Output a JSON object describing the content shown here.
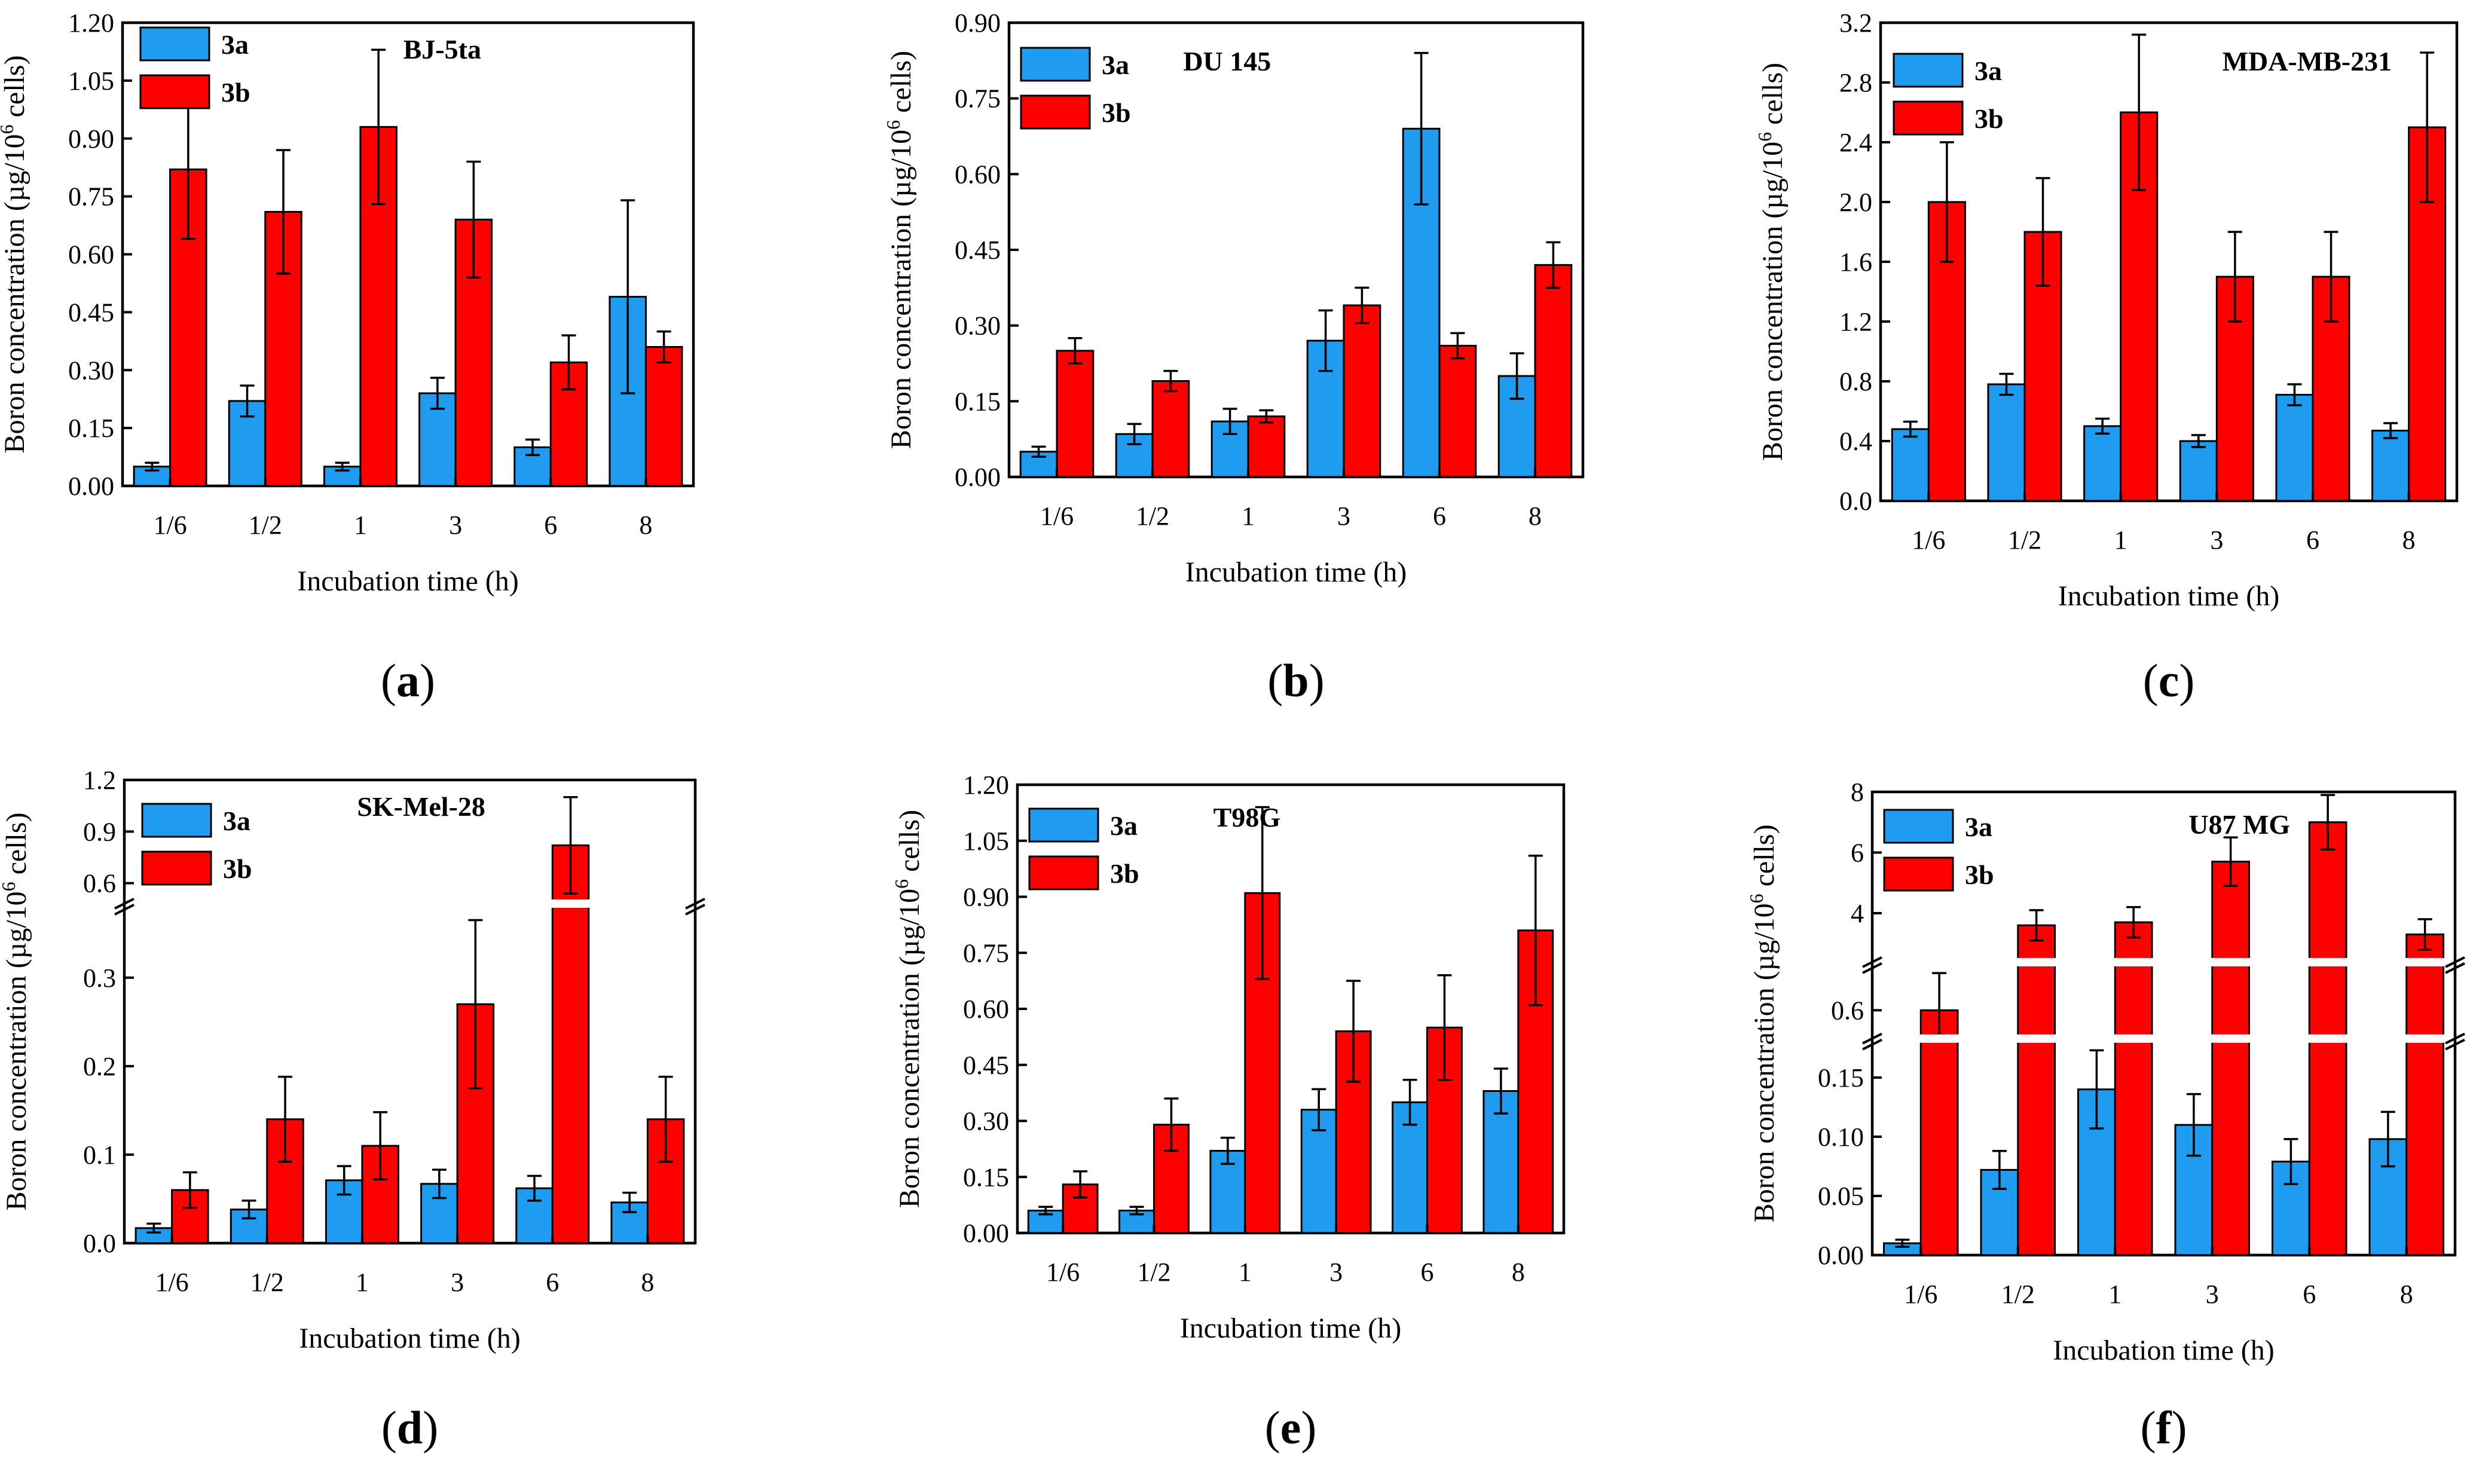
{
  "figure": {
    "legend_names": [
      "3a",
      "3b"
    ],
    "colors": {
      "3a": "#1f9bef",
      "3b": "#ff0000"
    },
    "ylabel_prefix": "Boron concentration (µg/10",
    "ylabel_sup": "6",
    "ylabel_suffix": " cells)"
  },
  "chart_data": [
    {
      "type": "bar",
      "id": "a",
      "panel": "a",
      "title": "BJ-5ta",
      "xlabel": "Incubation time (h)",
      "categories": [
        "1/6",
        "1/2",
        "1",
        "3",
        "6",
        "8"
      ],
      "ylim": [
        0,
        1.2
      ],
      "yticks": [
        0.0,
        0.15,
        0.3,
        0.45,
        0.6,
        0.75,
        0.9,
        1.05,
        1.2
      ],
      "ytick_labels": [
        "0.00",
        "0.15",
        "0.30",
        "0.45",
        "0.60",
        "0.75",
        "0.90",
        "1.05",
        "1.20"
      ],
      "series": [
        {
          "name": "3a",
          "values": [
            0.05,
            0.22,
            0.05,
            0.24,
            0.1,
            0.49
          ],
          "errors": [
            0.01,
            0.04,
            0.01,
            0.04,
            0.02,
            0.25
          ]
        },
        {
          "name": "3b",
          "values": [
            0.82,
            0.71,
            0.93,
            0.69,
            0.32,
            0.36
          ],
          "errors": [
            0.18,
            0.16,
            0.2,
            0.15,
            0.07,
            0.04
          ]
        }
      ]
    },
    {
      "type": "bar",
      "id": "b",
      "panel": "b",
      "title": "DU 145",
      "xlabel": "Incubation time (h)",
      "categories": [
        "1/6",
        "1/2",
        "1",
        "3",
        "6",
        "8"
      ],
      "ylim": [
        0,
        0.9
      ],
      "yticks": [
        0.0,
        0.15,
        0.3,
        0.45,
        0.6,
        0.75,
        0.9
      ],
      "ytick_labels": [
        "0.00",
        "0.15",
        "0.30",
        "0.45",
        "0.60",
        "0.75",
        "0.90"
      ],
      "series": [
        {
          "name": "3a",
          "values": [
            0.05,
            0.085,
            0.11,
            0.27,
            0.69,
            0.2
          ],
          "errors": [
            0.01,
            0.02,
            0.025,
            0.06,
            0.15,
            0.045
          ]
        },
        {
          "name": "3b",
          "values": [
            0.25,
            0.19,
            0.12,
            0.34,
            0.26,
            0.42
          ],
          "errors": [
            0.025,
            0.02,
            0.012,
            0.035,
            0.025,
            0.045
          ]
        }
      ]
    },
    {
      "type": "bar",
      "id": "c",
      "panel": "c",
      "title": "MDA-MB-231",
      "xlabel": "Incubation time (h)",
      "categories": [
        "1/6",
        "1/2",
        "1",
        "3",
        "6",
        "8"
      ],
      "ylim": [
        0,
        3.2
      ],
      "yticks": [
        0.0,
        0.4,
        0.8,
        1.2,
        1.6,
        2.0,
        2.4,
        2.8,
        3.2
      ],
      "ytick_labels": [
        "0.0",
        "0.4",
        "0.8",
        "1.2",
        "1.6",
        "2.0",
        "2.4",
        "2.8",
        "3.2"
      ],
      "series": [
        {
          "name": "3a",
          "values": [
            0.48,
            0.78,
            0.5,
            0.4,
            0.71,
            0.47
          ],
          "errors": [
            0.05,
            0.07,
            0.05,
            0.04,
            0.07,
            0.05
          ]
        },
        {
          "name": "3b",
          "values": [
            2.0,
            1.8,
            2.6,
            1.5,
            1.5,
            2.5
          ],
          "errors": [
            0.4,
            0.36,
            0.52,
            0.3,
            0.3,
            0.5
          ]
        }
      ]
    },
    {
      "type": "bar",
      "id": "d",
      "panel": "d",
      "title": "SK-Mel-28",
      "xlabel": "Incubation time (h)",
      "categories": [
        "1/6",
        "1/2",
        "1",
        "3",
        "6",
        "8"
      ],
      "ylim": [
        0,
        1.2
      ],
      "axis_break": {
        "lower": [
          0,
          0.38
        ],
        "upper": [
          0.5,
          1.2
        ]
      },
      "yticks": [
        0.0,
        0.1,
        0.2,
        0.3,
        0.6,
        0.9,
        1.2
      ],
      "ytick_labels": [
        "0.0",
        "0.1",
        "0.2",
        "0.3",
        "0.6",
        "0.9",
        "1.2"
      ],
      "series": [
        {
          "name": "3a",
          "values": [
            0.017,
            0.038,
            0.071,
            0.067,
            0.062,
            0.046
          ],
          "errors": [
            0.005,
            0.01,
            0.016,
            0.016,
            0.014,
            0.011
          ]
        },
        {
          "name": "3b",
          "values": [
            0.06,
            0.14,
            0.11,
            0.27,
            0.82,
            0.14
          ],
          "errors": [
            0.02,
            0.048,
            0.038,
            0.095,
            0.28,
            0.048
          ]
        }
      ]
    },
    {
      "type": "bar",
      "id": "e",
      "panel": "e",
      "title": "T98G",
      "xlabel": "Incubation time (h)",
      "categories": [
        "1/6",
        "1/2",
        "1",
        "3",
        "6",
        "8"
      ],
      "ylim": [
        0,
        1.2
      ],
      "yticks": [
        0.0,
        0.15,
        0.3,
        0.45,
        0.6,
        0.75,
        0.9,
        1.05,
        1.2
      ],
      "ytick_labels": [
        "0.00",
        "0.15",
        "0.30",
        "0.45",
        "0.60",
        "0.75",
        "0.90",
        "1.05",
        "1.20"
      ],
      "series": [
        {
          "name": "3a",
          "values": [
            0.06,
            0.06,
            0.22,
            0.33,
            0.35,
            0.38
          ],
          "errors": [
            0.01,
            0.01,
            0.035,
            0.055,
            0.06,
            0.06
          ]
        },
        {
          "name": "3b",
          "values": [
            0.13,
            0.29,
            0.91,
            0.54,
            0.55,
            0.81
          ],
          "errors": [
            0.035,
            0.07,
            0.23,
            0.135,
            0.14,
            0.2
          ]
        }
      ]
    },
    {
      "type": "bar",
      "id": "f",
      "panel": "f",
      "title": "U87 MG",
      "xlabel": "Incubation time (h)",
      "categories": [
        "1/6",
        "1/2",
        "1",
        "3",
        "6",
        "8"
      ],
      "ylim": [
        0,
        8
      ],
      "axis_break": {
        "lower": [
          0,
          0.18
        ],
        "middle": [
          0.5,
          0.78
        ],
        "upper": [
          2.5,
          8
        ]
      },
      "yticks": [
        0.0,
        0.05,
        0.1,
        0.15,
        0.6,
        4,
        6,
        8
      ],
      "ytick_labels": [
        "0.00",
        "0.05",
        "0.10",
        "0.15",
        "0.6",
        "4",
        "6",
        "8"
      ],
      "series": [
        {
          "name": "3a",
          "values": [
            0.01,
            0.072,
            0.14,
            0.11,
            0.079,
            0.098
          ],
          "errors": [
            0.003,
            0.016,
            0.033,
            0.026,
            0.019,
            0.023
          ]
        },
        {
          "name": "3b",
          "values": [
            0.6,
            3.6,
            3.7,
            5.7,
            7.0,
            3.3
          ],
          "errors": [
            0.15,
            0.5,
            0.5,
            0.8,
            0.9,
            0.5
          ]
        }
      ]
    }
  ]
}
